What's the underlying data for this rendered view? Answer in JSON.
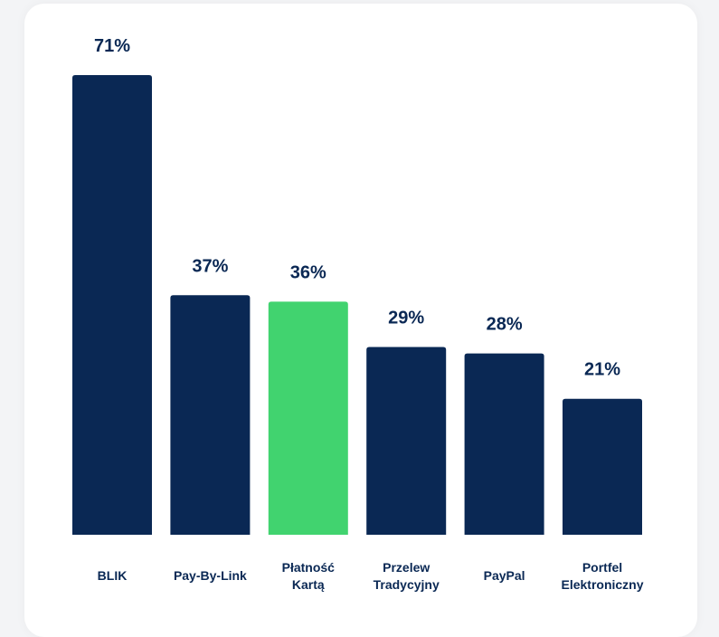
{
  "chart_data": {
    "type": "bar",
    "title": "",
    "xlabel": "",
    "ylabel": "",
    "ylim": [
      0,
      71
    ],
    "grid": false,
    "categories": [
      [
        "BLIK"
      ],
      [
        "Pay-By-Link"
      ],
      [
        "Płatność",
        "Kartą"
      ],
      [
        "Przelew",
        "Tradycyjny"
      ],
      [
        "PayPal"
      ],
      [
        "Portfel",
        "Elektroniczny"
      ]
    ],
    "values": [
      71,
      37,
      36,
      29,
      28,
      21
    ],
    "value_labels": [
      "71%",
      "37%",
      "36%",
      "29%",
      "28%",
      "21%"
    ],
    "highlight_index": 2,
    "colors": {
      "default": "#0a2854",
      "highlight": "#41d36f",
      "text": "#0a2854"
    }
  }
}
